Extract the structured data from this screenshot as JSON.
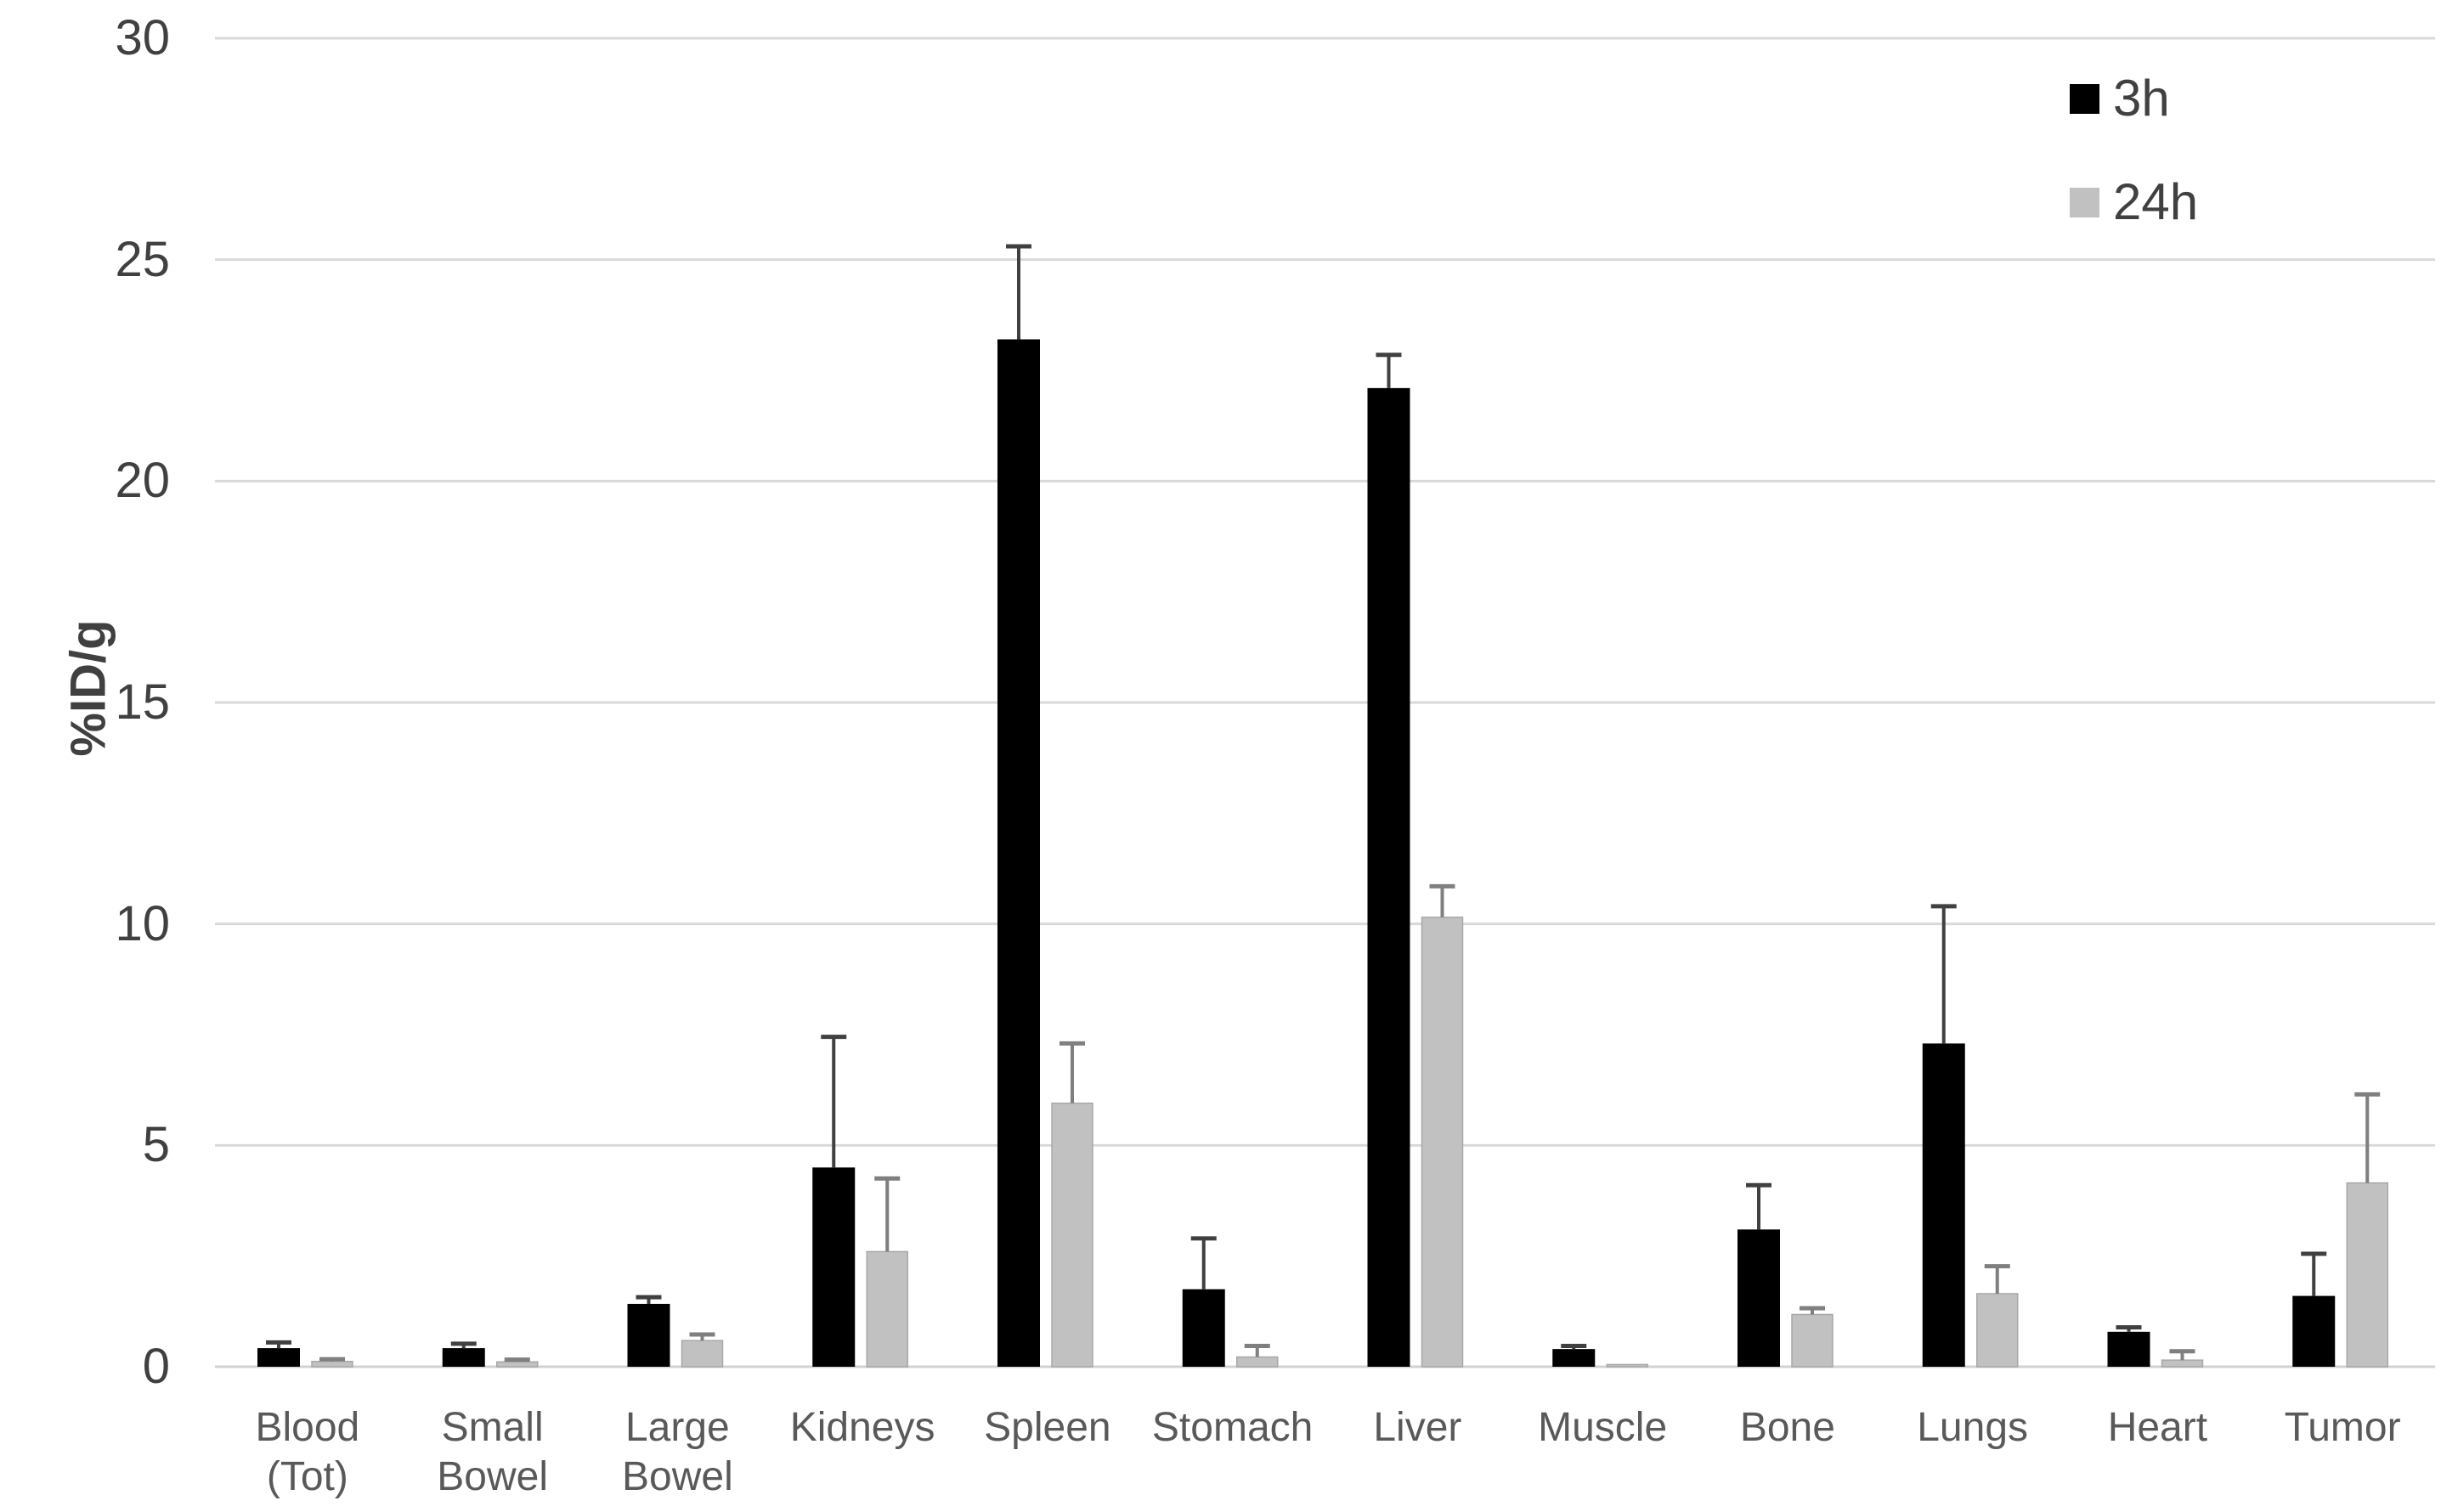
{
  "chart_data": {
    "type": "bar",
    "title": "",
    "xlabel": "",
    "ylabel": "%ID/g",
    "ylim": [
      0,
      30
    ],
    "yticks": [
      0,
      5,
      10,
      15,
      20,
      25,
      30
    ],
    "grid": "horizontal",
    "legend_position": "top-right",
    "categories": [
      "Blood (Tot)",
      "Small Bowel",
      "Large Bowel",
      "Kidneys",
      "Spleen",
      "Stomach",
      "Liver",
      "Muscle",
      "Bone",
      "Lungs",
      "Heart",
      "Tumor"
    ],
    "category_label_lines": [
      [
        "Blood",
        "(Tot)"
      ],
      [
        "Small",
        "Bowel"
      ],
      [
        "Large",
        "Bowel"
      ],
      [
        "Kidneys"
      ],
      [
        "Spleen"
      ],
      [
        "Stomach"
      ],
      [
        "Liver"
      ],
      [
        "Muscle"
      ],
      [
        "Bone"
      ],
      [
        "Lungs"
      ],
      [
        "Heart"
      ],
      [
        "Tumor"
      ]
    ],
    "series": [
      {
        "name": "3h",
        "color": "#000000",
        "error_color": "#404040",
        "values": [
          0.42,
          0.42,
          1.42,
          4.5,
          23.2,
          1.75,
          22.1,
          0.4,
          3.1,
          7.3,
          0.79,
          1.6
        ],
        "errors_up": [
          0.13,
          0.1,
          0.15,
          2.95,
          2.1,
          1.15,
          0.75,
          0.07,
          1.0,
          3.1,
          0.1,
          0.95
        ]
      },
      {
        "name": "24h",
        "color": "#c1c1c1",
        "error_color": "#7f7f7f",
        "values": [
          0.12,
          0.11,
          0.59,
          2.6,
          5.95,
          0.22,
          10.15,
          0.05,
          1.18,
          1.65,
          0.15,
          4.15
        ],
        "errors_up": [
          0.05,
          0.05,
          0.14,
          1.65,
          1.35,
          0.25,
          0.7,
          0.0,
          0.14,
          0.62,
          0.2,
          2.0
        ]
      }
    ],
    "colors": {
      "background": "#ffffff",
      "gridline": "#d9d9d9",
      "axis_line": "#d2d2d2",
      "tick_text": "#404040",
      "category_text": "#595959",
      "legend_text": "#404040",
      "gray_bar_border": "#a8a8a8"
    }
  }
}
